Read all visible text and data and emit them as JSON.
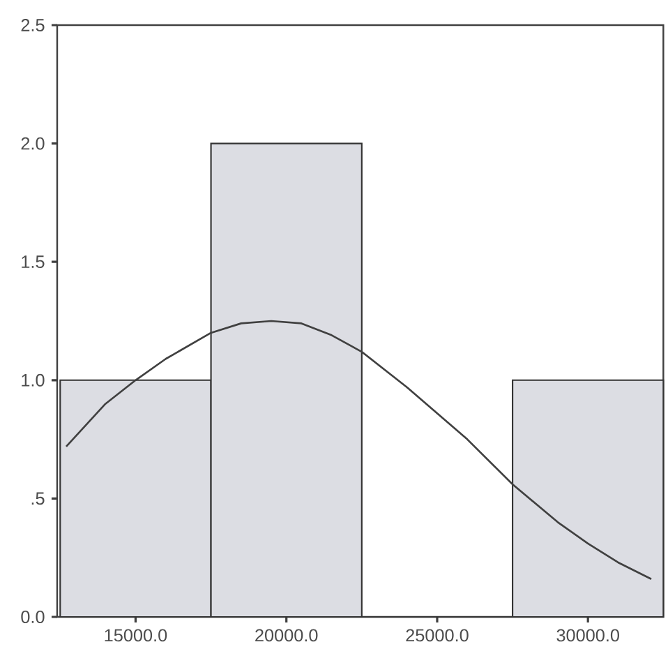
{
  "chart_data": {
    "type": "histogram",
    "bins": [
      12500,
      17500,
      22500,
      27500,
      32500
    ],
    "values": [
      1,
      2,
      0,
      1
    ],
    "color": "#dcdde3",
    "xlim": [
      12400,
      32500
    ],
    "ylim": [
      0,
      2.5
    ],
    "xticks": [
      {
        "value": 15000,
        "label": "15000.0"
      },
      {
        "value": 20000,
        "label": "20000.0"
      },
      {
        "value": 25000,
        "label": "25000.0"
      },
      {
        "value": 30000,
        "label": "30000.0"
      }
    ],
    "yticks": [
      {
        "value": 0,
        "label": "0.0"
      },
      {
        "value": 0.5,
        "label": ".5"
      },
      {
        "value": 1,
        "label": "1.0"
      },
      {
        "value": 1.5,
        "label": "1.5"
      },
      {
        "value": 2,
        "label": "2.0"
      },
      {
        "value": 2.5,
        "label": "2.5"
      }
    ],
    "series": [
      {
        "type": "line",
        "color": "#404040",
        "x": [
          12700,
          14000,
          15000,
          16000,
          17500,
          18500,
          19500,
          20500,
          21500,
          22500,
          24000,
          25000,
          26000,
          27500,
          29000,
          30000,
          31000,
          32100
        ],
        "values": [
          0.72,
          0.9,
          1.0,
          1.09,
          1.2,
          1.24,
          1.25,
          1.24,
          1.19,
          1.12,
          0.97,
          0.86,
          0.75,
          0.56,
          0.4,
          0.31,
          0.23,
          0.16
        ]
      }
    ]
  }
}
